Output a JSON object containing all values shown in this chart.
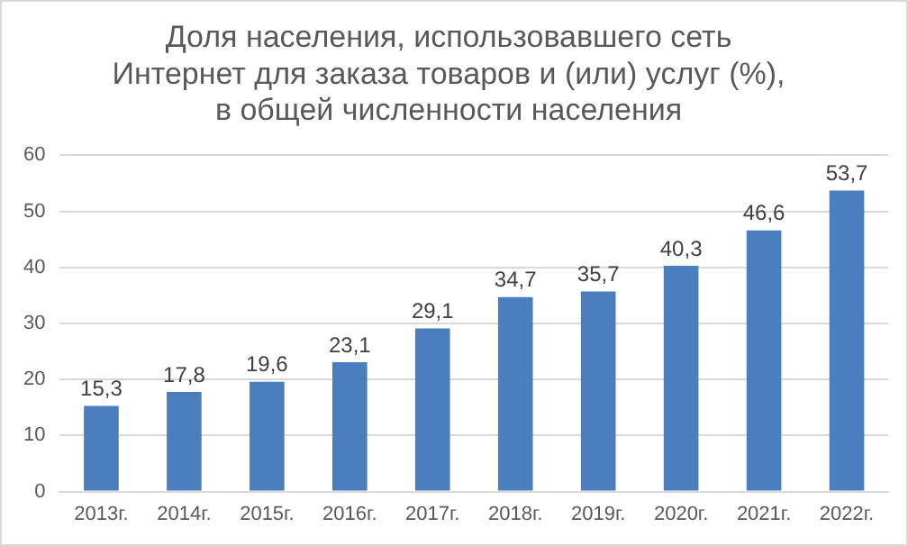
{
  "chart_data": {
    "type": "bar",
    "title": "Доля населения, использовавшего сеть\nИнтернет для заказа товаров и (или) услуг (%),\nв общей численности населения",
    "categories": [
      "2013г.",
      "2014г.",
      "2015г.",
      "2016г.",
      "2017г.",
      "2018г.",
      "2019г.",
      "2020г.",
      "2021г.",
      "2022г."
    ],
    "values": [
      15.3,
      17.8,
      19.6,
      23.1,
      29.1,
      34.7,
      35.7,
      40.3,
      46.6,
      53.7
    ],
    "color": "#4a7ebf",
    "ylim": [
      0,
      60
    ],
    "yticks": [
      0,
      10,
      20,
      30,
      40,
      50,
      60
    ],
    "grid": "y",
    "value_labels": [
      "15,3",
      "17,8",
      "19,6",
      "23,1",
      "29,1",
      "34,7",
      "35,7",
      "40,3",
      "46,6",
      "53,7"
    ]
  }
}
